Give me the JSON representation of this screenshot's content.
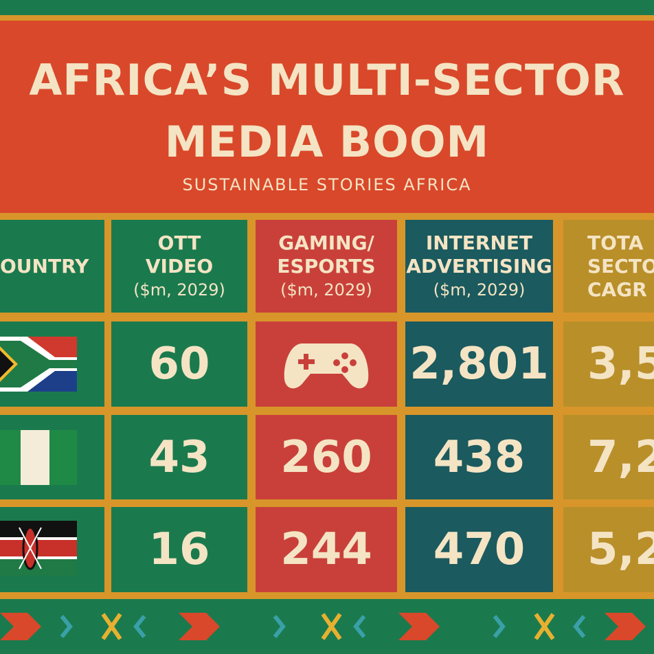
{
  "header": {
    "title_lines": [
      "AFRICA’S MULTI-SECTOR",
      "MEDIA BOOM"
    ],
    "subtitle": "SUSTAINABLE STORIES AFRICA"
  },
  "table": {
    "columns": [
      [
        "OUNTRY"
      ],
      [
        "OTT",
        "VIDEO",
        "($m, 2029)"
      ],
      [
        "GAMING/",
        "ESPORTS",
        "($m, 2029)"
      ],
      [
        "INTERNET",
        "ADVERTISING",
        "($m, 2029)"
      ],
      [
        "TOTA",
        "SECTO",
        "CAGR ("
      ]
    ],
    "rows": [
      [
        60,
        null,
        "2,801",
        "3,5"
      ],
      [
        43,
        260,
        438,
        "7,2"
      ],
      [
        16,
        244,
        470,
        "5,2"
      ]
    ]
  }
}
